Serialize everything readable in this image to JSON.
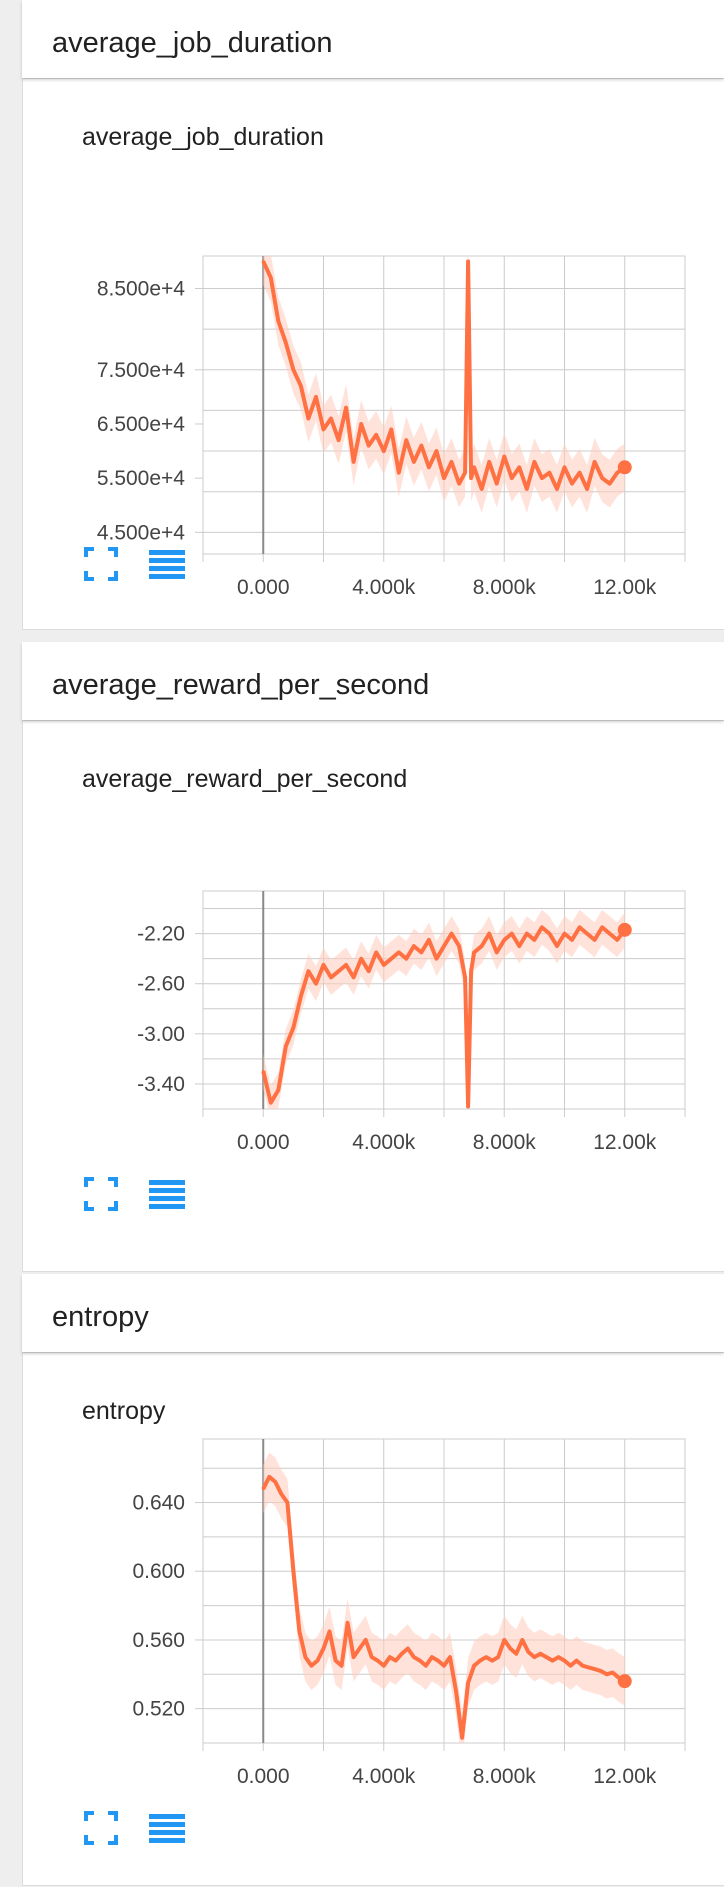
{
  "sections": [
    {
      "header": "average_job_duration",
      "chart_title": "average_job_duration",
      "y_ticks": [
        "8.500e+4",
        "7.500e+4",
        "6.500e+4",
        "5.500e+4",
        "4.500e+4"
      ],
      "x_ticks": [
        "0.000",
        "4.000k",
        "8.000k",
        "12.00k"
      ]
    },
    {
      "header": "average_reward_per_second",
      "chart_title": "average_reward_per_second",
      "y_ticks": [
        "-2.20",
        "-2.60",
        "-3.00",
        "-3.40"
      ],
      "x_ticks": [
        "0.000",
        "4.000k",
        "8.000k",
        "12.00k"
      ]
    },
    {
      "header": "entropy",
      "chart_title": "entropy",
      "y_ticks": [
        "0.640",
        "0.600",
        "0.560",
        "0.520"
      ],
      "x_ticks": [
        "0.000",
        "4.000k",
        "8.000k",
        "12.00k"
      ]
    }
  ],
  "icons": {
    "expand": "fullscreen-icon",
    "data": "data-table-icon"
  },
  "colors": {
    "line": "#ff7043",
    "band": "#ffccbc",
    "grid": "#cccccc",
    "axis_zero": "#888888",
    "icon": "#2196f3"
  },
  "chart_data": [
    {
      "type": "line",
      "title": "average_job_duration",
      "xlabel": "",
      "ylabel": "",
      "xlim": [
        -2000,
        14000
      ],
      "ylim": [
        41000,
        96000
      ],
      "grid": true,
      "smoothing_band": true,
      "series": [
        {
          "x": [
            0,
            250,
            500,
            750,
            1000,
            1250,
            1500,
            1750,
            2000,
            2250,
            2500,
            2750,
            3000,
            3250,
            3500,
            3750,
            4000,
            4250,
            4500,
            4750,
            5000,
            5250,
            5500,
            5750,
            6000,
            6250,
            6500,
            6700,
            6800,
            6900,
            7000,
            7250,
            7500,
            7750,
            8000,
            8250,
            8500,
            8750,
            9000,
            9250,
            9500,
            9750,
            10000,
            10250,
            10500,
            10750,
            11000,
            11250,
            11500,
            11750,
            12000
          ],
          "y": [
            95000,
            92000,
            84000,
            80000,
            75000,
            72000,
            66000,
            70000,
            64000,
            66000,
            62000,
            68000,
            58000,
            65000,
            61000,
            63000,
            60000,
            64000,
            56000,
            62000,
            58000,
            61000,
            57000,
            60000,
            55000,
            58000,
            54000,
            56000,
            95000,
            55000,
            57000,
            53000,
            58000,
            54000,
            59000,
            55000,
            57000,
            53000,
            58000,
            55000,
            56000,
            53000,
            57000,
            54000,
            56000,
            53000,
            58000,
            55000,
            54000,
            56000,
            57000
          ]
        }
      ]
    },
    {
      "type": "line",
      "title": "average_reward_per_second",
      "xlabel": "",
      "ylabel": "",
      "xlim": [
        -2000,
        14000
      ],
      "ylim": [
        -3.6,
        -1.86
      ],
      "grid": true,
      "smoothing_band": true,
      "series": [
        {
          "x": [
            0,
            250,
            500,
            750,
            1000,
            1250,
            1500,
            1750,
            2000,
            2250,
            2500,
            2750,
            3000,
            3250,
            3500,
            3750,
            4000,
            4250,
            4500,
            4750,
            5000,
            5250,
            5500,
            5750,
            6000,
            6250,
            6500,
            6700,
            6800,
            6900,
            7000,
            7250,
            7500,
            7750,
            8000,
            8250,
            8500,
            8750,
            9000,
            9250,
            9500,
            9750,
            10000,
            10250,
            10500,
            10750,
            11000,
            11250,
            11500,
            11750,
            12000
          ],
          "y": [
            -3.3,
            -3.55,
            -3.45,
            -3.1,
            -2.95,
            -2.7,
            -2.5,
            -2.6,
            -2.45,
            -2.55,
            -2.5,
            -2.45,
            -2.55,
            -2.4,
            -2.5,
            -2.35,
            -2.45,
            -2.4,
            -2.35,
            -2.4,
            -2.3,
            -2.35,
            -2.25,
            -2.4,
            -2.3,
            -2.2,
            -2.3,
            -2.55,
            -3.58,
            -2.5,
            -2.35,
            -2.3,
            -2.2,
            -2.35,
            -2.25,
            -2.2,
            -2.3,
            -2.2,
            -2.25,
            -2.15,
            -2.2,
            -2.3,
            -2.2,
            -2.25,
            -2.15,
            -2.2,
            -2.25,
            -2.15,
            -2.2,
            -2.25,
            -2.17
          ]
        }
      ]
    },
    {
      "type": "line",
      "title": "entropy",
      "xlabel": "",
      "ylabel": "",
      "xlim": [
        -2000,
        14000
      ],
      "ylim": [
        0.5,
        0.677
      ],
      "grid": true,
      "smoothing_band": true,
      "series": [
        {
          "x": [
            0,
            200,
            400,
            600,
            800,
            1000,
            1200,
            1400,
            1600,
            1800,
            2000,
            2200,
            2400,
            2600,
            2800,
            3000,
            3200,
            3400,
            3600,
            3800,
            4000,
            4200,
            4400,
            4600,
            4800,
            5000,
            5200,
            5400,
            5600,
            5800,
            6000,
            6200,
            6400,
            6600,
            6800,
            7000,
            7200,
            7400,
            7600,
            7800,
            8000,
            8200,
            8400,
            8600,
            8800,
            9000,
            9200,
            9400,
            9600,
            9800,
            10000,
            10200,
            10400,
            10600,
            10800,
            11000,
            11200,
            11400,
            11600,
            11800,
            12000
          ],
          "y": [
            0.648,
            0.655,
            0.652,
            0.645,
            0.64,
            0.6,
            0.565,
            0.55,
            0.545,
            0.548,
            0.555,
            0.565,
            0.548,
            0.545,
            0.57,
            0.55,
            0.555,
            0.56,
            0.55,
            0.548,
            0.545,
            0.55,
            0.548,
            0.552,
            0.555,
            0.55,
            0.548,
            0.545,
            0.55,
            0.548,
            0.545,
            0.55,
            0.53,
            0.503,
            0.535,
            0.545,
            0.548,
            0.55,
            0.548,
            0.55,
            0.56,
            0.555,
            0.552,
            0.56,
            0.553,
            0.55,
            0.552,
            0.55,
            0.548,
            0.55,
            0.548,
            0.545,
            0.548,
            0.545,
            0.544,
            0.543,
            0.542,
            0.54,
            0.541,
            0.538,
            0.536
          ]
        }
      ]
    }
  ]
}
